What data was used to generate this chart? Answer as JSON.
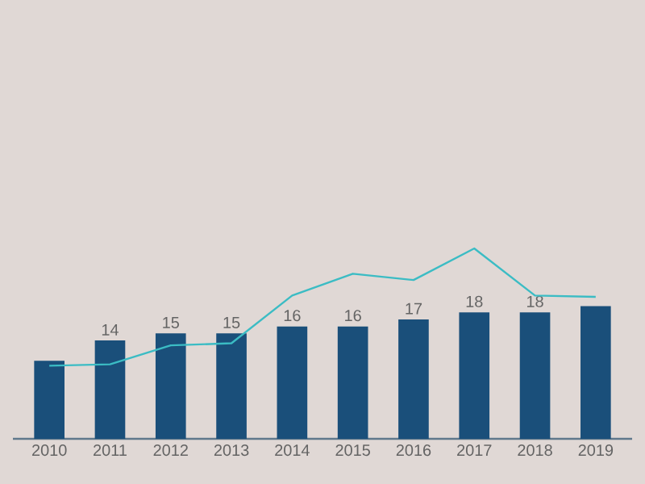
{
  "chart_data": {
    "type": "bar",
    "categories": [
      "2010",
      "2011",
      "2012",
      "2013",
      "2014",
      "2015",
      "2016",
      "2017",
      "2018",
      "2019"
    ],
    "series": [
      {
        "color": "#1a4f7a",
        "values": [
          11.1,
          14,
          15,
          15,
          16,
          16,
          17,
          18,
          18,
          18.9
        ],
        "value_labels": [
          null,
          "14",
          "15",
          "15",
          "16",
          "16",
          "17",
          "18",
          "18",
          null
        ]
      },
      {
        "type": "line",
        "color": "#3bbcc4",
        "values": [
          10.4,
          10.6,
          13.3,
          13.6,
          20.4,
          23.5,
          22.6,
          27.1,
          20.4,
          20.2
        ]
      }
    ]
  }
}
